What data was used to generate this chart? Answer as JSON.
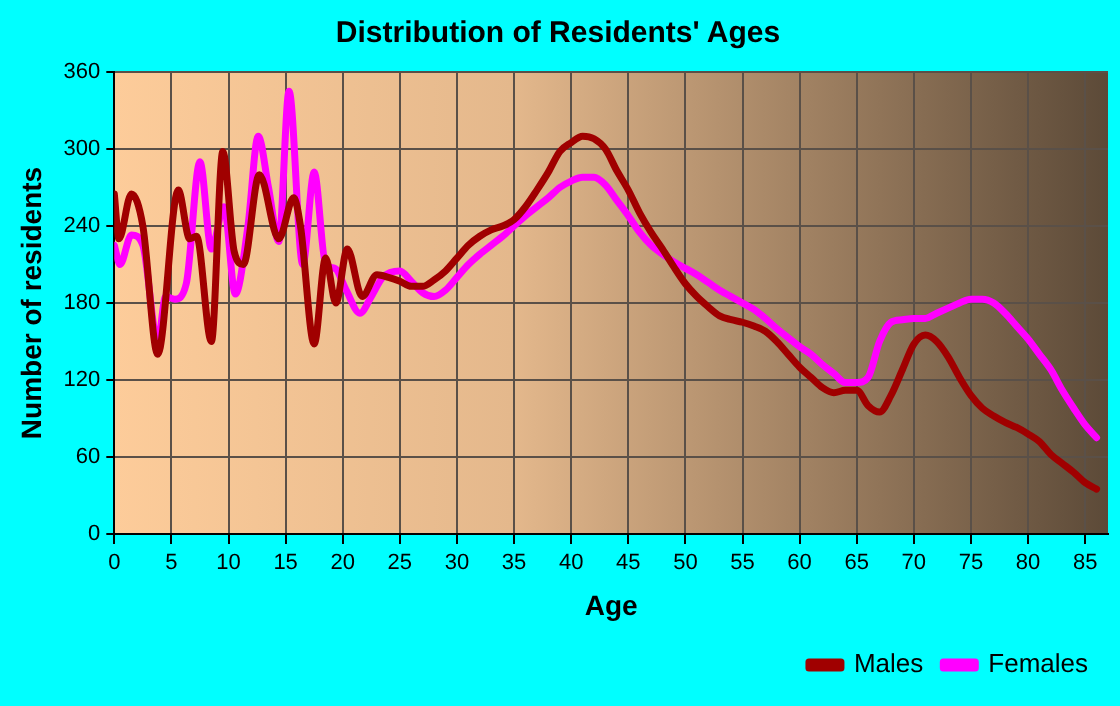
{
  "chart_data": {
    "type": "line",
    "title": "Distribution of Residents' Ages",
    "xlabel": "Age",
    "ylabel": "Number of residents",
    "series": [
      {
        "name": "Males",
        "color": "#a00000",
        "x": [
          0,
          0.4,
          1.5,
          2.5,
          3.8,
          5.6,
          6.6,
          7.2,
          8.5,
          9.5,
          10.5,
          11.3,
          12.7,
          14.4,
          15.7,
          16.3,
          17.5,
          18.5,
          19.4,
          20.4,
          21.7,
          23,
          24,
          25,
          26,
          27,
          28,
          29,
          30,
          31,
          32,
          33,
          34,
          35,
          36,
          37,
          38,
          39,
          40,
          41,
          42,
          43,
          44,
          45,
          46,
          47,
          48,
          49,
          50,
          51,
          52,
          53,
          54,
          55,
          56,
          57,
          58,
          59,
          60,
          61,
          62,
          63,
          64,
          65,
          66,
          67,
          68,
          69,
          70,
          71,
          72,
          73,
          74,
          75,
          76,
          77,
          78,
          79,
          80,
          81,
          82,
          83,
          84,
          85,
          86
        ],
        "values": [
          265,
          230,
          265,
          240,
          140,
          268,
          230,
          232,
          150,
          298,
          220,
          210,
          280,
          230,
          262,
          240,
          148,
          215,
          180,
          222,
          185,
          202,
          200,
          197,
          193,
          193,
          198,
          205,
          215,
          225,
          232,
          237,
          240,
          245,
          255,
          268,
          282,
          298,
          305,
          310,
          308,
          300,
          283,
          268,
          250,
          235,
          222,
          208,
          195,
          185,
          177,
          170,
          167,
          165,
          162,
          158,
          150,
          140,
          130,
          122,
          114,
          110,
          112,
          112,
          100,
          95,
          108,
          128,
          148,
          155,
          150,
          138,
          122,
          108,
          98,
          92,
          87,
          83,
          78,
          72,
          62,
          55,
          48,
          40,
          35
        ]
      },
      {
        "name": "Females",
        "color": "#ff00ff",
        "x": [
          0,
          0.5,
          1.5,
          2.5,
          3.8,
          4.5,
          5.3,
          6.3,
          7.5,
          8.5,
          9.6,
          10.6,
          11.7,
          12.6,
          13.5,
          14.4,
          15.3,
          16.5,
          17.5,
          18.5,
          19.3,
          20.3,
          21.5,
          22.5,
          23.5,
          25,
          26,
          27,
          28,
          29,
          30,
          31,
          32,
          33,
          34,
          35,
          36,
          37,
          38,
          39,
          40,
          41,
          42,
          43,
          44,
          45,
          46,
          47,
          48,
          49,
          50,
          51,
          52,
          53,
          54,
          55,
          56,
          57,
          58,
          59,
          60,
          61,
          62,
          63,
          64,
          65,
          66,
          67,
          68,
          69,
          70,
          71,
          72,
          73,
          74,
          75,
          76,
          77,
          78,
          79,
          80,
          81,
          82,
          83,
          84,
          85,
          86
        ],
        "values": [
          225,
          210,
          233,
          225,
          150,
          185,
          183,
          195,
          290,
          222,
          255,
          187,
          240,
          310,
          270,
          228,
          345,
          210,
          282,
          210,
          207,
          190,
          172,
          185,
          200,
          205,
          197,
          188,
          185,
          190,
          200,
          210,
          218,
          225,
          232,
          240,
          248,
          255,
          262,
          270,
          275,
          278,
          278,
          272,
          260,
          248,
          235,
          225,
          218,
          212,
          207,
          202,
          196,
          190,
          185,
          180,
          175,
          168,
          160,
          153,
          146,
          140,
          132,
          125,
          118,
          118,
          122,
          150,
          165,
          167,
          168,
          168,
          172,
          176,
          180,
          183,
          183,
          180,
          172,
          162,
          152,
          140,
          128,
          112,
          98,
          85,
          75
        ]
      }
    ],
    "xlim": [
      0,
      87
    ],
    "xticks": [
      0,
      5,
      10,
      15,
      20,
      25,
      30,
      35,
      40,
      45,
      50,
      55,
      60,
      65,
      70,
      75,
      80,
      85
    ],
    "ylim": [
      0,
      360
    ],
    "yticks": [
      0,
      60,
      120,
      180,
      240,
      300,
      360
    ],
    "grid": true,
    "legend": "bottom right",
    "marker": "none",
    "line_style": "solid"
  }
}
